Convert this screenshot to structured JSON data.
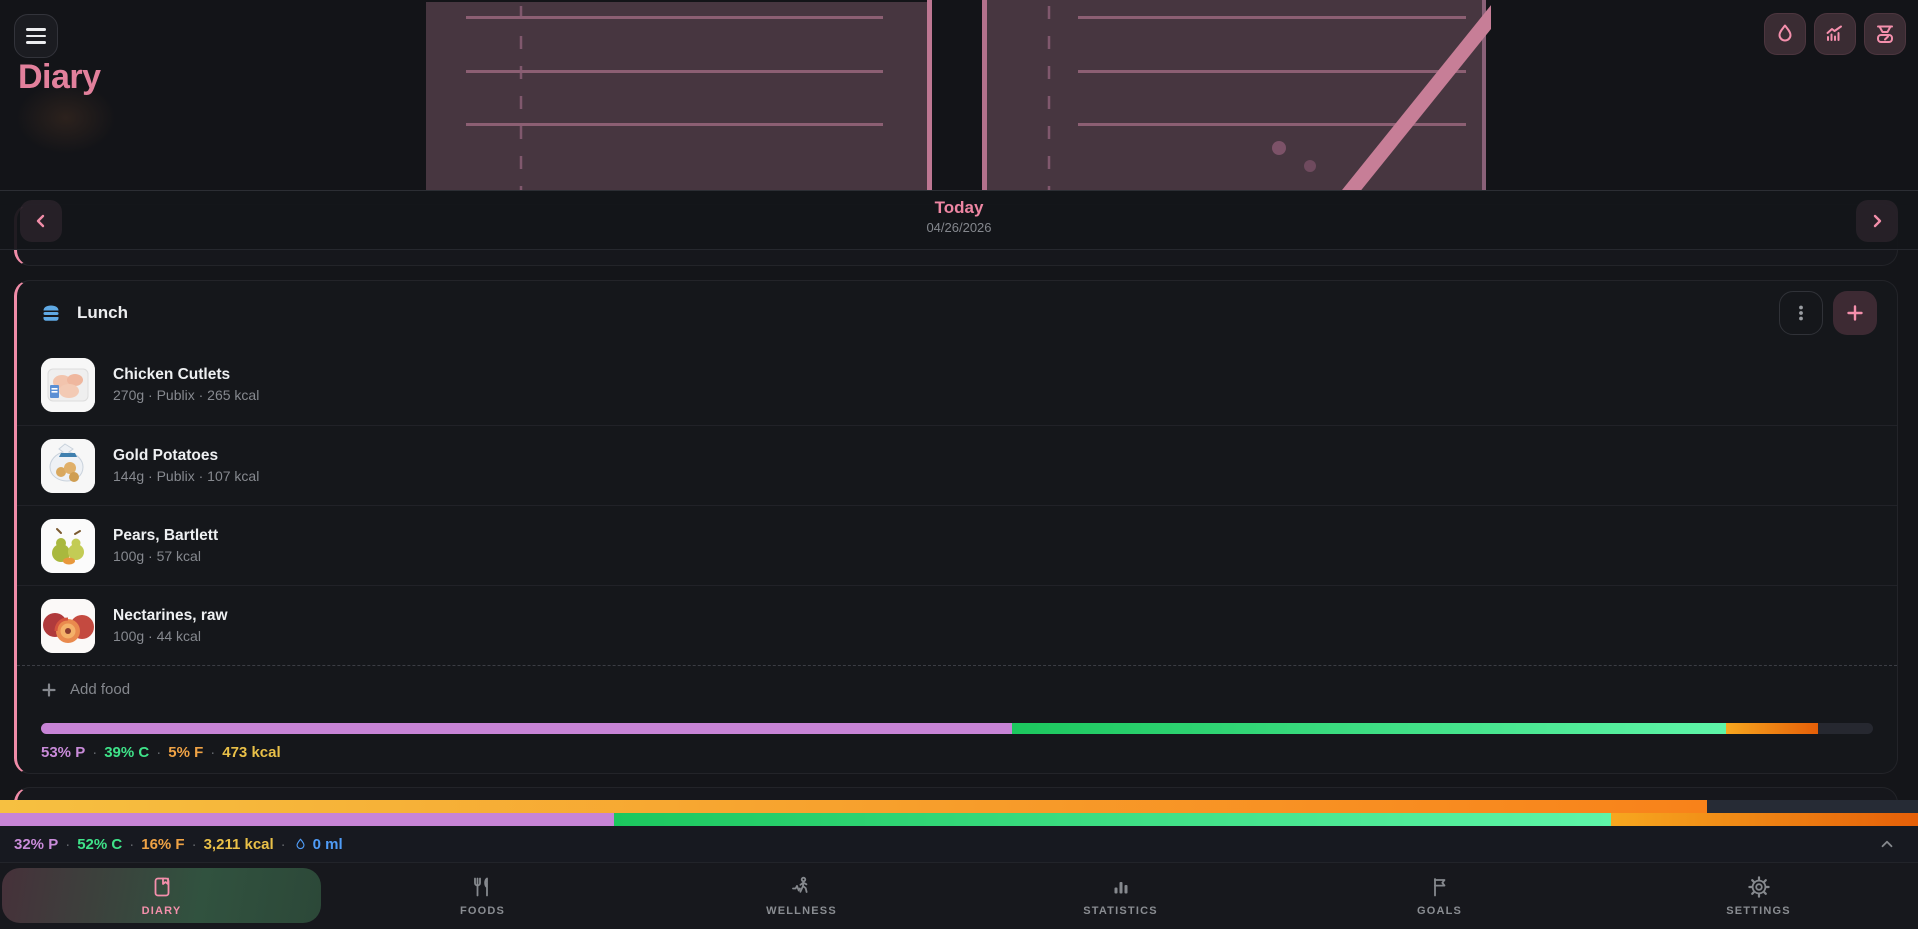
{
  "header": {
    "title": "Diary",
    "actions": [
      {
        "name": "water-log",
        "icon": "droplet-icon"
      },
      {
        "name": "trends",
        "icon": "trend-chart-icon"
      },
      {
        "name": "weigh-in",
        "icon": "food-scale-icon"
      }
    ]
  },
  "date_nav": {
    "label": "Today",
    "date": "04/26/2026"
  },
  "meal_card": {
    "title": "Lunch",
    "icon": "burger-icon",
    "items": [
      {
        "name": "Chicken Cutlets",
        "details": "270g · Publix · 265 kcal"
      },
      {
        "name": "Gold Potatoes",
        "details": "144g · Publix · 107 kcal"
      },
      {
        "name": "Pears, Bartlett",
        "details": "100g · 57 kcal"
      },
      {
        "name": "Nectarines, raw",
        "details": "100g · 44 kcal"
      }
    ],
    "add_food_label": "Add food",
    "macro_bar": {
      "protein_pct": 53,
      "carbs_pct": 39,
      "fat_pct": 5
    },
    "summary": {
      "protein": "53% P",
      "carbs": "39% C",
      "fat": "5% F",
      "kcal": "473 kcal",
      "separator": "·"
    }
  },
  "day_summary": {
    "calorie_bar_pct": 89,
    "macro_bar": {
      "protein_pct": 32,
      "carbs_pct": 52,
      "fat_pct": 16
    },
    "protein": "32% P",
    "carbs": "52% C",
    "fat": "16% F",
    "kcal": "3,211 kcal",
    "water": "0 ml",
    "separator": "·"
  },
  "nav": {
    "items": [
      {
        "label": "DIARY",
        "icon": "bookmark-icon",
        "active": true
      },
      {
        "label": "FOODS",
        "icon": "fork-knife-icon",
        "active": false
      },
      {
        "label": "WELLNESS",
        "icon": "walking-person-icon",
        "active": false
      },
      {
        "label": "STATISTICS",
        "icon": "bar-chart-icon",
        "active": false
      },
      {
        "label": "GOALS",
        "icon": "flag-icon",
        "active": false
      },
      {
        "label": "SETTINGS",
        "icon": "gear-icon",
        "active": false
      }
    ]
  },
  "colors": {
    "accent_pink": "#f48fac",
    "protein_purple": "#c98bd9",
    "carbs_green": "#3fe389",
    "fat_orange": "#f0a345",
    "kcal_yellow": "#e9c048",
    "water_blue": "#4f9cf7",
    "meal_icon_blue": "#5fa9e4"
  }
}
